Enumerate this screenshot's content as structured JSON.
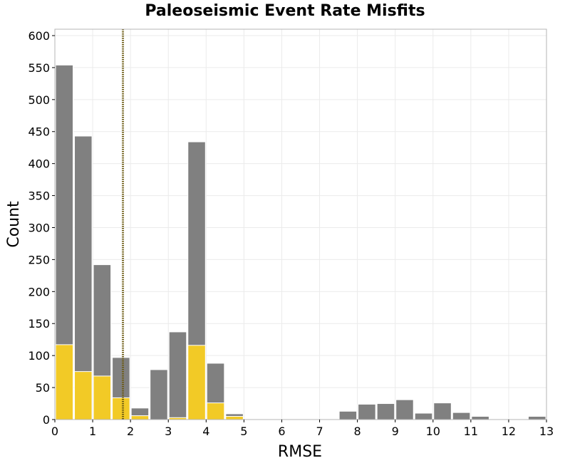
{
  "chart_data": {
    "type": "bar",
    "title": "Paleoseismic Event Rate Misfits",
    "xlabel": "RMSE",
    "ylabel": "Count",
    "xlim": [
      0,
      13
    ],
    "ylim": [
      0,
      610
    ],
    "x_ticks": [
      "0",
      "1",
      "2",
      "3",
      "4",
      "5",
      "6",
      "7",
      "8",
      "9",
      "10",
      "11",
      "12",
      "13"
    ],
    "y_ticks": [
      "0",
      "50",
      "100",
      "150",
      "200",
      "250",
      "300",
      "350",
      "400",
      "450",
      "500",
      "550",
      "600"
    ],
    "grid": true,
    "bin_width": 0.5,
    "x": [
      0.25,
      0.75,
      1.25,
      1.75,
      2.25,
      2.75,
      3.25,
      3.75,
      4.25,
      4.75,
      5.25,
      5.75,
      6.25,
      6.75,
      7.25,
      7.75,
      8.25,
      8.75,
      9.25,
      9.75,
      10.25,
      10.75,
      11.25,
      11.75,
      12.25,
      12.75
    ],
    "series": [
      {
        "color": "#808080",
        "values": [
          554,
          443,
          242,
          97,
          18,
          78,
          137,
          434,
          88,
          9,
          0,
          0,
          0,
          0,
          0,
          13,
          24,
          25,
          31,
          10,
          26,
          11,
          5,
          0,
          0,
          5
        ]
      },
      {
        "color": "#f2ca26",
        "values": [
          117,
          75,
          68,
          34,
          6,
          0,
          3,
          116,
          26,
          5,
          0,
          0,
          0,
          0,
          0,
          0,
          0,
          0,
          0,
          0,
          0,
          0,
          0,
          0,
          0,
          0
        ]
      }
    ],
    "reference_line": {
      "x": 1.8,
      "color": "#6b5a12",
      "style": "dotted"
    },
    "colors": {
      "grid": "#ebebeb",
      "plot_border": "#b4b4b4",
      "bar_edge": "#ffffff"
    }
  }
}
